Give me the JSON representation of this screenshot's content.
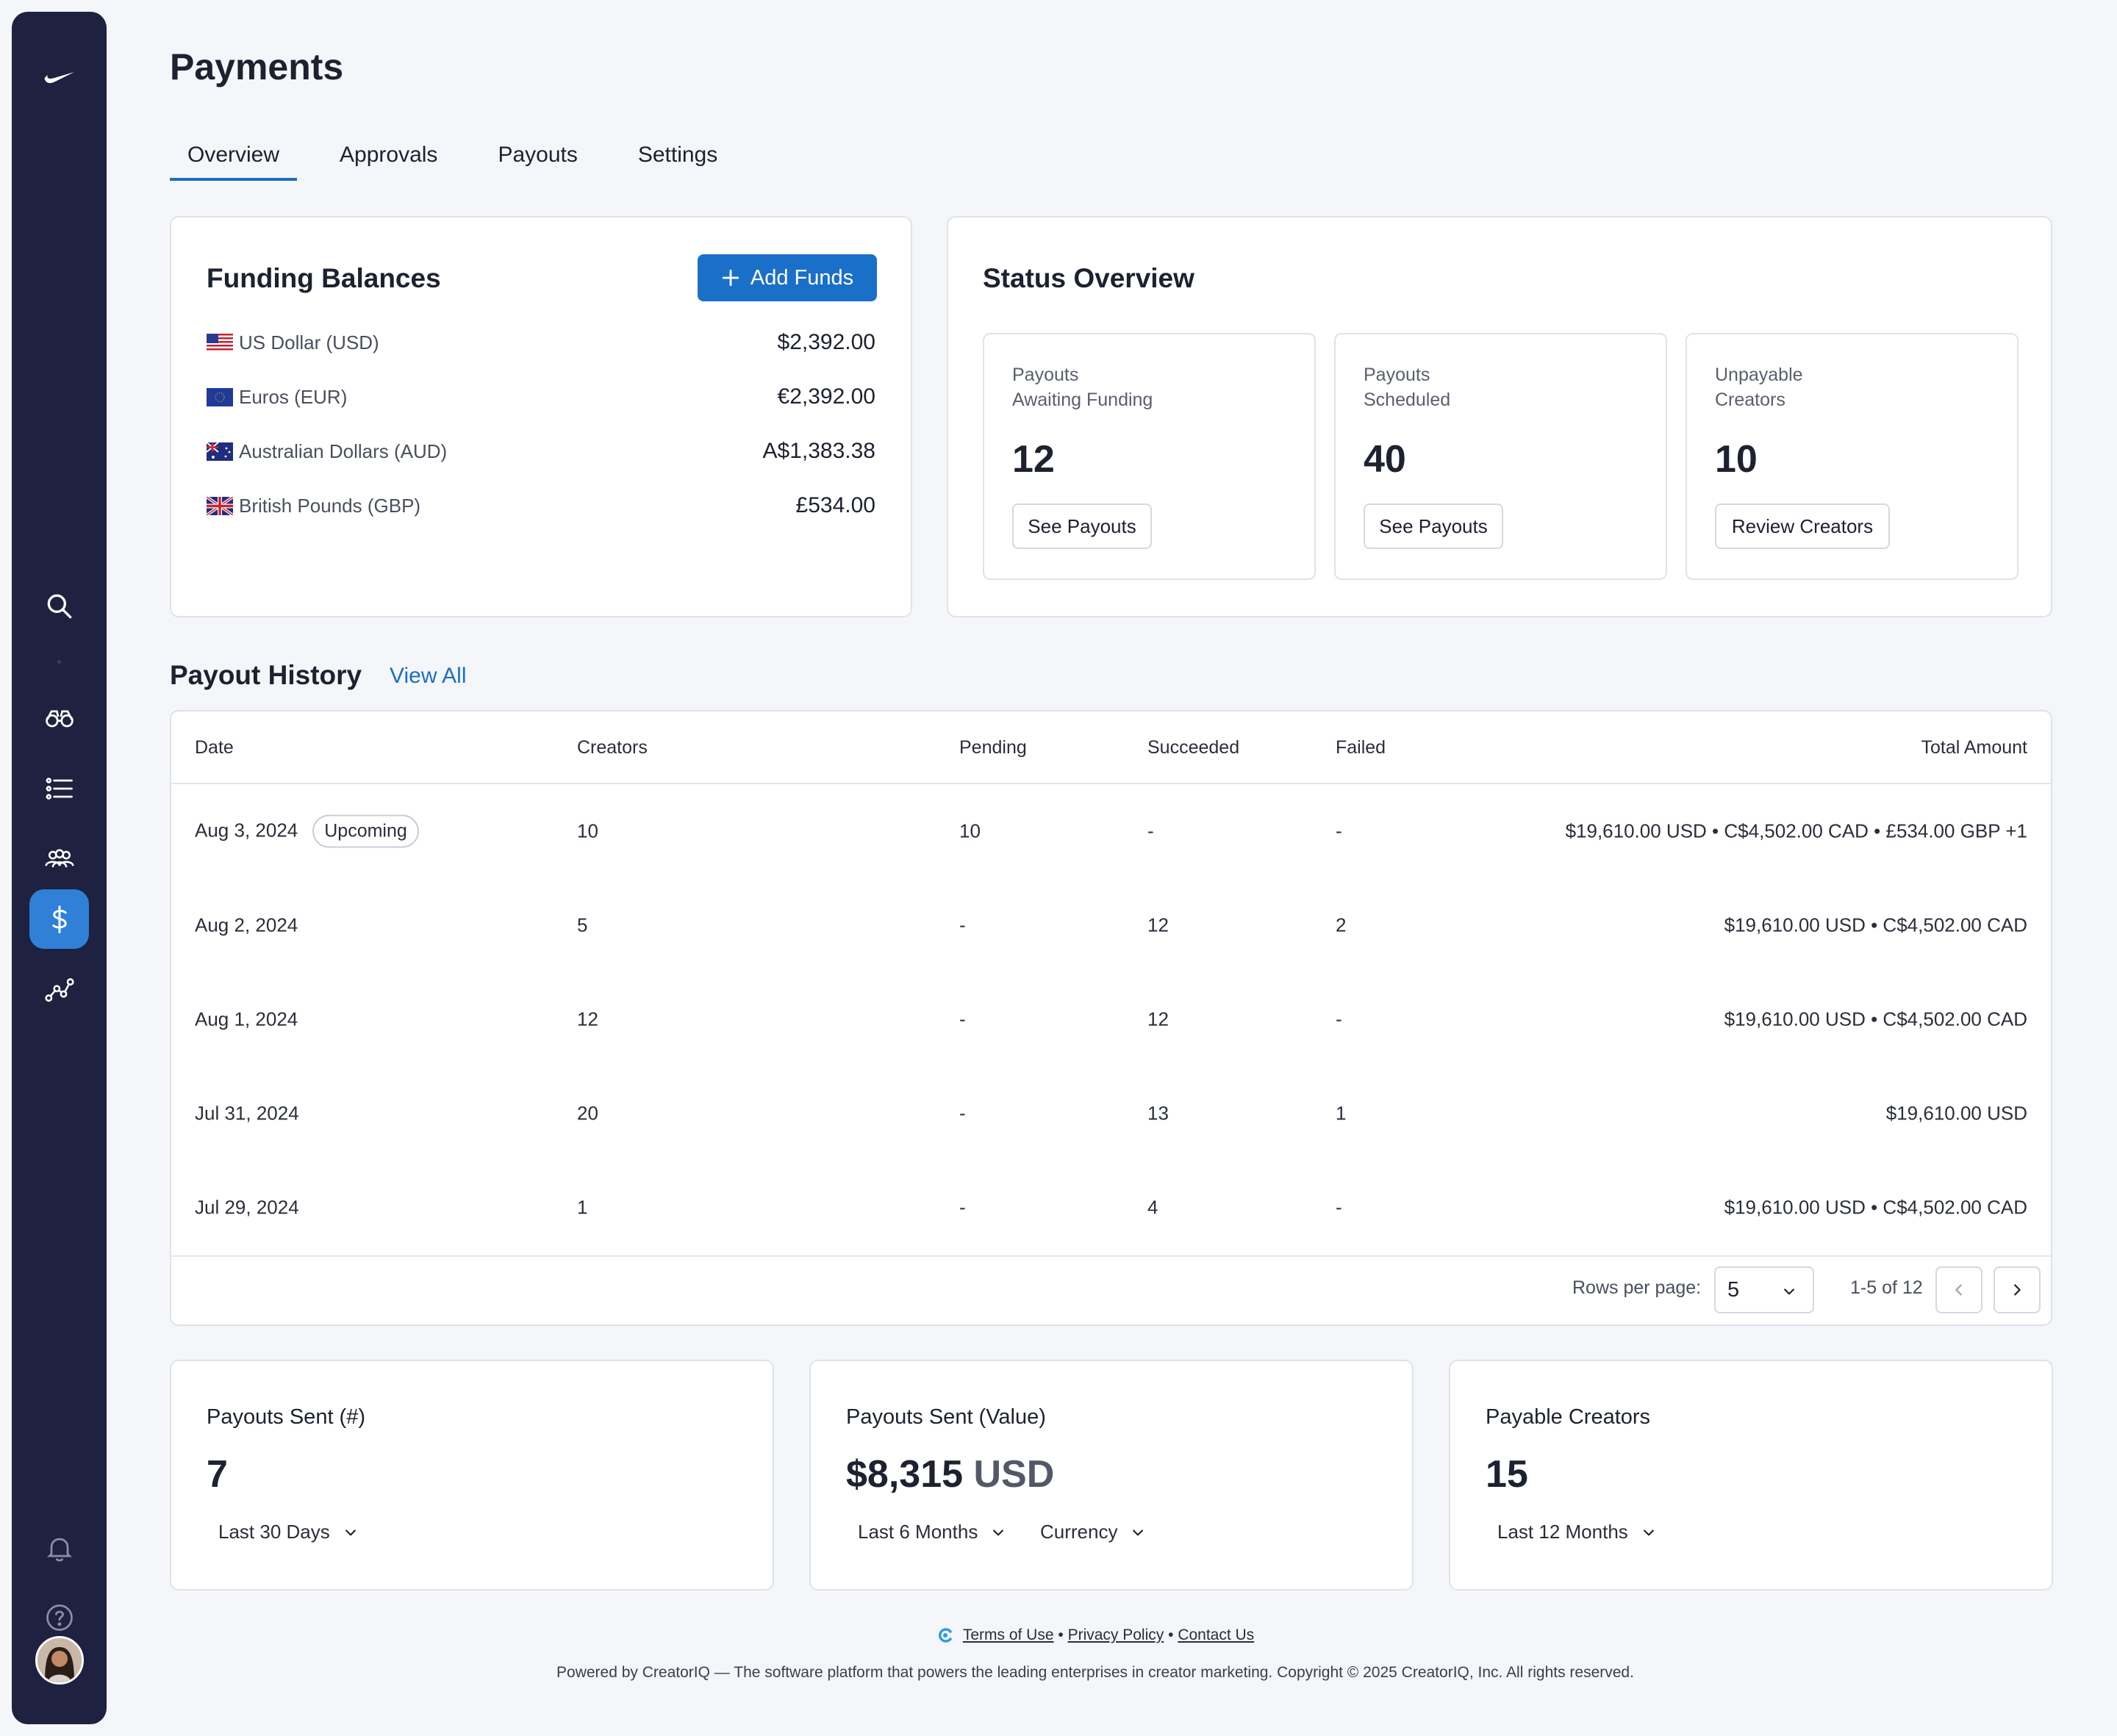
{
  "page": {
    "title": "Payments"
  },
  "tabs": [
    {
      "label": "Overview",
      "active": true
    },
    {
      "label": "Approvals"
    },
    {
      "label": "Payouts"
    },
    {
      "label": "Settings"
    }
  ],
  "sidebar": {
    "logo": "swoosh-logo",
    "items": [
      {
        "icon": "search-icon"
      },
      {
        "icon": "binoculars-icon"
      },
      {
        "icon": "list-icon"
      },
      {
        "icon": "people-icon"
      },
      {
        "icon": "dollar-icon",
        "active": true
      },
      {
        "icon": "analytics-icon"
      }
    ],
    "bottom": [
      {
        "icon": "bell-icon"
      },
      {
        "icon": "help-icon"
      },
      {
        "icon": "avatar"
      }
    ],
    "active_color": "#2f80d6",
    "background": "#1e2140"
  },
  "funding": {
    "title": "Funding Balances",
    "add_funds_label": "Add Funds",
    "rows": [
      {
        "flag": "us-flag-icon",
        "label": "US Dollar (USD)",
        "value": "$2,392.00"
      },
      {
        "flag": "eu-flag-icon",
        "label": "Euros (EUR)",
        "value": "€2,392.00"
      },
      {
        "flag": "au-flag-icon",
        "label": "Australian Dollars (AUD)",
        "value": "A$1,383.38"
      },
      {
        "flag": "uk-flag-icon",
        "label": "British Pounds (GBP)",
        "value": "£534.00"
      }
    ]
  },
  "status": {
    "title": "Status Overview",
    "boxes": [
      {
        "label_line1": "Payouts",
        "label_line2": "Awaiting Funding",
        "value": "12",
        "button": "See Payouts"
      },
      {
        "label_line1": "Payouts",
        "label_line2": "Scheduled",
        "value": "40",
        "button": "See Payouts"
      },
      {
        "label_line1": "Unpayable",
        "label_line2": "Creators",
        "value": "10",
        "button": "Review Creators"
      }
    ]
  },
  "history": {
    "title": "Payout History",
    "view_all": "View All",
    "columns": [
      "Date",
      "Creators",
      "Pending",
      "Succeeded",
      "Failed",
      "Total Amount"
    ],
    "rows": [
      {
        "date": "Aug 3, 2024",
        "badge": "Upcoming",
        "creators": "10",
        "pending": "10",
        "succeeded": "-",
        "failed": "-",
        "total": "$19,610.00 USD • C$4,502.00 CAD • £534.00 GBP +1"
      },
      {
        "date": "Aug 2, 2024",
        "creators": "5",
        "pending": "-",
        "succeeded": "12",
        "failed": "2",
        "total": "$19,610.00 USD • C$4,502.00 CAD"
      },
      {
        "date": "Aug 1, 2024",
        "creators": "12",
        "pending": "-",
        "succeeded": "12",
        "failed": "-",
        "total": "$19,610.00 USD • C$4,502.00 CAD"
      },
      {
        "date": "Jul 31, 2024",
        "creators": "20",
        "pending": "-",
        "succeeded": "13",
        "failed": "1",
        "total": "$19,610.00 USD"
      },
      {
        "date": "Jul 29, 2024",
        "creators": "1",
        "pending": "-",
        "succeeded": "4",
        "failed": "-",
        "total": "$19,610.00 USD • C$4,502.00 CAD"
      }
    ],
    "rows_per_page_label": "Rows per page:",
    "rows_per_page_value": "5",
    "range_text": "1-5 of 12"
  },
  "metrics": [
    {
      "label": "Payouts Sent (#)",
      "value": "7",
      "unit": "",
      "dropdowns": [
        "Last 30 Days"
      ]
    },
    {
      "label": "Payouts Sent (Value)",
      "value": "$8,315",
      "unit": "USD",
      "dropdowns": [
        "Last 6 Months",
        "Currency"
      ]
    },
    {
      "label": "Payable Creators",
      "value": "15",
      "unit": "",
      "dropdowns": [
        "Last 12 Months"
      ]
    }
  ],
  "footer": {
    "links": [
      "Terms of Use",
      "Privacy Policy",
      "Contact Us"
    ],
    "separator": "•",
    "copyright": "Powered by CreatorIQ — The software platform that powers the leading enterprises in creator marketing. Copyright © 2025 CreatorIQ, Inc. All rights reserved."
  },
  "colors": {
    "primary": "#1a6fc9",
    "link": "#1b6fbf",
    "background": "#f5f6f9"
  }
}
